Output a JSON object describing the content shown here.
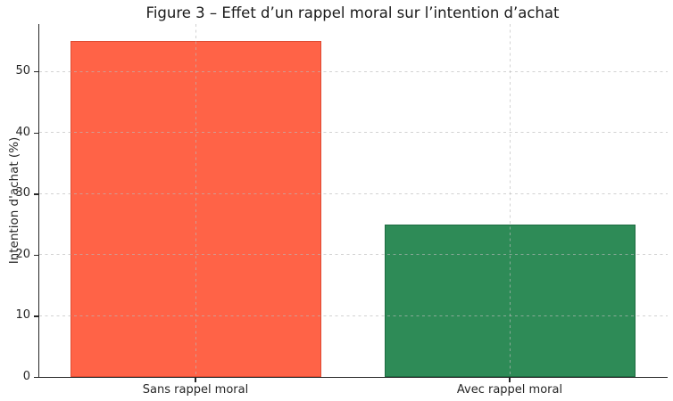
{
  "chart_data": {
    "type": "bar",
    "title": "Figure 3 – Effet d’un rappel moral sur l’intention d’achat",
    "categories": [
      "Sans rappel moral",
      "Avec rappel moral"
    ],
    "values": [
      55,
      25
    ],
    "xlabel": "",
    "ylabel": "Intention d'achat (%)",
    "ylim": [
      0,
      57.75
    ],
    "yticks": [
      0,
      10,
      20,
      30,
      40,
      50
    ],
    "bar_colors": [
      "#ff6347",
      "#2e8b57"
    ],
    "bar_edge_colors": [
      "#de4b33",
      "#1d6b41"
    ],
    "grid": true,
    "grid_style": "dashed",
    "grid_color": "#cccccc",
    "axis_color": "#262626",
    "background_color": "#ffffff",
    "legend": "none",
    "bar_width_fraction": 0.8
  }
}
